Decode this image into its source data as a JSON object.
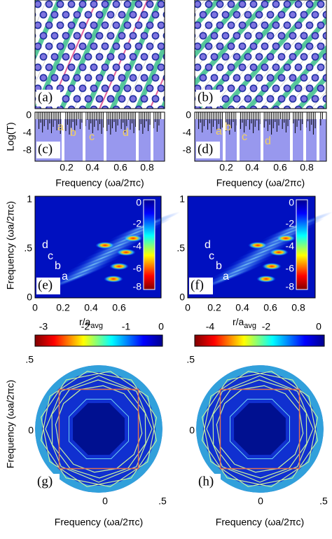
{
  "panels": {
    "a": {
      "label": "(a)"
    },
    "b": {
      "label": "(b)"
    },
    "c": {
      "label": "(c)",
      "ylabel": "Log(T)",
      "yticks": [
        "0",
        "-4",
        "-8"
      ],
      "xticks": [
        "0.2",
        "0.4",
        "0.6",
        "0.8"
      ],
      "xlabel": "Frequency (ωa/2πc)",
      "markers": [
        "a",
        "b",
        "c",
        "d"
      ]
    },
    "d": {
      "label": "(d)",
      "yticks": [
        "0",
        "-4",
        "-8"
      ],
      "xticks": [
        "0.2",
        "0.4",
        "0.6",
        "0.8"
      ],
      "xlabel": "Frequency (ωa/2πc)",
      "markers": [
        "a",
        "b",
        "c",
        "d"
      ]
    },
    "e": {
      "label": "(e)",
      "ylabel": "Frequency (ωa/2πc)",
      "yticks": [
        "1",
        ".5",
        "0"
      ],
      "xticks": [
        "0",
        "0.2",
        "0.4",
        "0.6"
      ],
      "xlabel": "r/a",
      "xlabel_sub": "avg",
      "colorbar": [
        "0",
        "-2",
        "-4",
        "-6",
        "-8"
      ],
      "markers": [
        "a",
        "b",
        "c",
        "d"
      ]
    },
    "f": {
      "label": "(f)",
      "yticks": [
        "1",
        ".5",
        "0"
      ],
      "xticks": [
        "0",
        "0.2",
        "0.4",
        "0.6",
        "0.8"
      ],
      "xlabel": "r/a",
      "xlabel_sub": "avg",
      "colorbar": [
        "0",
        "-2",
        "-4",
        "-6",
        "-8"
      ],
      "markers": [
        "a",
        "b",
        "c",
        "d"
      ]
    },
    "g": {
      "label": "(g)",
      "ylabel": "Frequency (ωa/2πc)",
      "yticks": [
        ".5",
        "0"
      ],
      "xticks": [
        "0",
        ".5"
      ],
      "xlabel": "Frequency (ωa/2πc)",
      "colorbar": [
        "-3",
        "-2",
        "-1",
        "0"
      ]
    },
    "h": {
      "label": "(h)",
      "yticks": [
        ".5",
        "0"
      ],
      "xticks": [
        "0",
        ".5"
      ],
      "xlabel": "Frequency (ωa/2πc)",
      "colorbar": [
        "-4",
        "-2",
        "0"
      ]
    }
  }
}
